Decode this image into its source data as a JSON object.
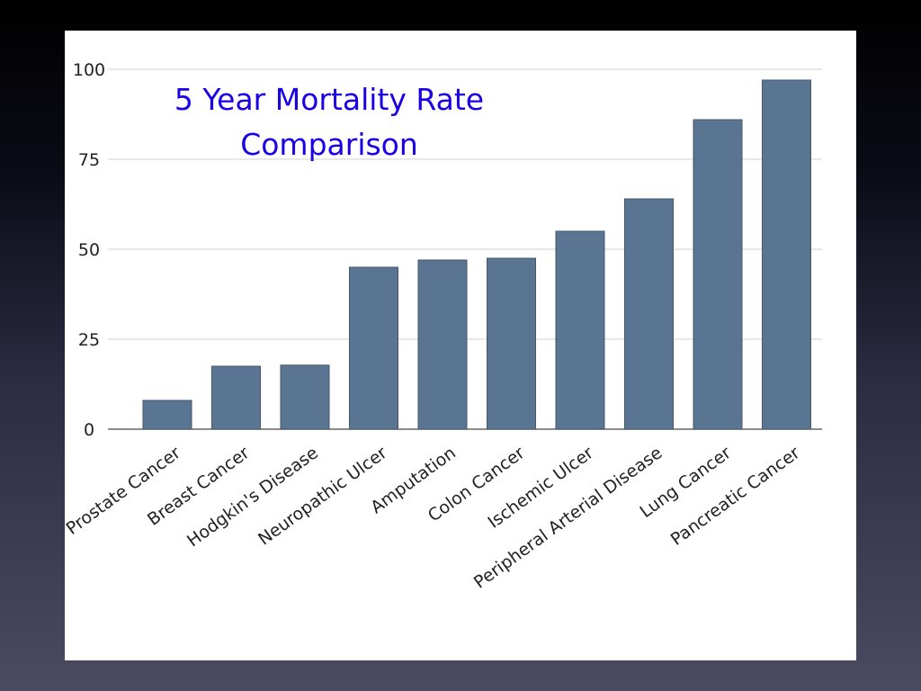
{
  "colors": {
    "bar": "#5a7592",
    "bar_edge": "#44586e",
    "title": "#1a00e6",
    "grid": "#d0d0d0",
    "axis": "#666666"
  },
  "chart_data": {
    "type": "bar",
    "title": [
      "5 Year Mortality Rate",
      "Comparison"
    ],
    "xlabel": "",
    "ylabel": "",
    "ylim": [
      0,
      100
    ],
    "yticks": [
      0,
      25,
      50,
      75,
      100
    ],
    "grid": true,
    "categories": [
      "Prostate Cancer",
      "Breast Cancer",
      "Hodgkin's Disease",
      "Neuropathic Ulcer",
      "Amputation",
      "Colon Cancer",
      "Ischemic Ulcer",
      "Peripheral Arterial Disease",
      "Lung Cancer",
      "Pancreatic Cancer"
    ],
    "values": [
      8,
      17.5,
      17.8,
      45,
      47,
      47.5,
      55,
      64,
      86,
      97
    ]
  }
}
